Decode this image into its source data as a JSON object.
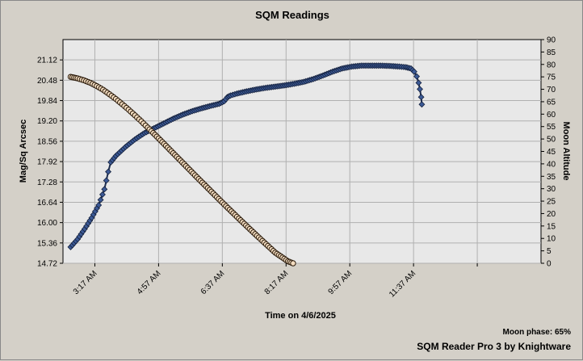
{
  "chart_data": {
    "type": "line",
    "title": "SQM Readings",
    "xlabel": "Time on 4/6/2025",
    "ylabel": "Mag/Sq Arcsec",
    "y2label": "Moon Altitude",
    "x_tick_labels": [
      "3:17 AM",
      "4:57 AM",
      "6:37 AM",
      "8:17 AM",
      "9:57 AM",
      "11:37 AM"
    ],
    "x_tick_minutes": [
      197,
      297,
      397,
      497,
      597,
      697
    ],
    "xlim_minutes": [
      147,
      897
    ],
    "ylim": [
      14.72,
      21.76
    ],
    "y_ticks": [
      "14.72",
      "15.36",
      "16.00",
      "16.64",
      "17.28",
      "17.92",
      "18.56",
      "19.20",
      "19.84",
      "20.48",
      "21.12"
    ],
    "y2lim": [
      0,
      90
    ],
    "y2_ticks": [
      "0",
      "5",
      "10",
      "15",
      "20",
      "25",
      "30",
      "35",
      "40",
      "45",
      "50",
      "55",
      "60",
      "65",
      "70",
      "75",
      "80",
      "85",
      "90"
    ],
    "grid": true,
    "series": [
      {
        "name": "",
        "axis": "left",
        "color": "#3c5a96",
        "marker": "diamond",
        "points": [
          [
            159,
            15.23
          ],
          [
            170,
            15.48
          ],
          [
            181,
            15.8
          ],
          [
            192,
            16.15
          ],
          [
            203,
            16.55
          ],
          [
            212,
            17.05
          ],
          [
            218,
            17.6
          ],
          [
            222,
            17.9
          ],
          [
            230,
            18.1
          ],
          [
            245,
            18.38
          ],
          [
            260,
            18.62
          ],
          [
            275,
            18.82
          ],
          [
            290,
            18.97
          ],
          [
            305,
            19.12
          ],
          [
            320,
            19.27
          ],
          [
            335,
            19.4
          ],
          [
            350,
            19.51
          ],
          [
            365,
            19.6
          ],
          [
            380,
            19.68
          ],
          [
            392,
            19.74
          ],
          [
            400,
            19.82
          ],
          [
            405,
            19.95
          ],
          [
            410,
            20.0
          ],
          [
            420,
            20.06
          ],
          [
            435,
            20.13
          ],
          [
            450,
            20.19
          ],
          [
            465,
            20.24
          ],
          [
            480,
            20.28
          ],
          [
            495,
            20.32
          ],
          [
            510,
            20.37
          ],
          [
            525,
            20.43
          ],
          [
            540,
            20.52
          ],
          [
            555,
            20.63
          ],
          [
            570,
            20.75
          ],
          [
            585,
            20.85
          ],
          [
            600,
            20.91
          ],
          [
            615,
            20.94
          ],
          [
            630,
            20.94
          ],
          [
            645,
            20.94
          ],
          [
            660,
            20.93
          ],
          [
            675,
            20.91
          ],
          [
            685,
            20.89
          ],
          [
            693,
            20.85
          ],
          [
            698,
            20.75
          ],
          [
            702,
            20.6
          ],
          [
            705,
            20.4
          ],
          [
            707,
            20.2
          ],
          [
            709,
            19.95
          ],
          [
            710,
            19.72
          ]
        ]
      },
      {
        "name": "",
        "axis": "right",
        "color": "#b89a7a",
        "marker": "circle",
        "points": [
          [
            159,
            75.0
          ],
          [
            170,
            74.4
          ],
          [
            180,
            73.6
          ],
          [
            190,
            72.6
          ],
          [
            200,
            71.3
          ],
          [
            210,
            69.8
          ],
          [
            220,
            68.0
          ],
          [
            230,
            66.1
          ],
          [
            240,
            64.0
          ],
          [
            250,
            61.8
          ],
          [
            260,
            59.5
          ],
          [
            270,
            57.1
          ],
          [
            280,
            54.6
          ],
          [
            300,
            49.5
          ],
          [
            320,
            44.3
          ],
          [
            340,
            39.1
          ],
          [
            360,
            33.9
          ],
          [
            380,
            28.8
          ],
          [
            400,
            23.7
          ],
          [
            420,
            18.7
          ],
          [
            440,
            13.8
          ],
          [
            460,
            9.0
          ],
          [
            480,
            4.3
          ],
          [
            500,
            0.8
          ],
          [
            508,
            0.0
          ]
        ]
      }
    ]
  },
  "footer": {
    "moon_phase": "Moon phase: 65%",
    "credit": "SQM Reader Pro 3 by Knightware"
  }
}
